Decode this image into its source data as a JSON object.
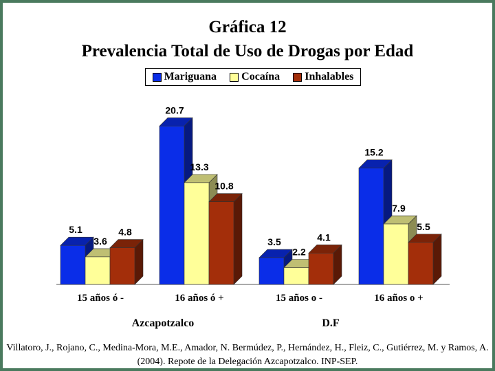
{
  "chart_data": {
    "type": "bar",
    "title": "Gráfica 12",
    "subtitle": "Prevalencia Total de Uso de Drogas por Edad",
    "categories": [
      "15 años ó -",
      "16 años ó +",
      "15 años o -",
      "16 años o +"
    ],
    "groups": [
      {
        "label": "Azcapotzalco",
        "categories": [
          "15 años ó -",
          "16 años ó +"
        ]
      },
      {
        "label": "D.F",
        "categories": [
          "15 años o -",
          "16 años o +"
        ]
      }
    ],
    "series": [
      {
        "name": "Mariguana",
        "color": "#0a2de8",
        "values": [
          5.1,
          20.7,
          3.5,
          15.2
        ]
      },
      {
        "name": "Cocaína",
        "color": "#ffff99",
        "values": [
          3.6,
          13.3,
          2.2,
          7.9
        ]
      },
      {
        "name": "Inhalables",
        "color": "#a32e0a",
        "values": [
          4.8,
          10.8,
          4.1,
          5.5
        ]
      }
    ],
    "ylim": [
      0,
      22
    ],
    "grid": false,
    "legend_position": "top-center",
    "citation": "Villatoro, J., Rojano, C., Medina-Mora, M.E., Amador, N. Bermúdez, P., Hernández, H., Fleiz, C., Gutiérrez, M. y Ramos, A. (2004). Repote de la Delegación Azcapotzalco. INP-SEP."
  }
}
